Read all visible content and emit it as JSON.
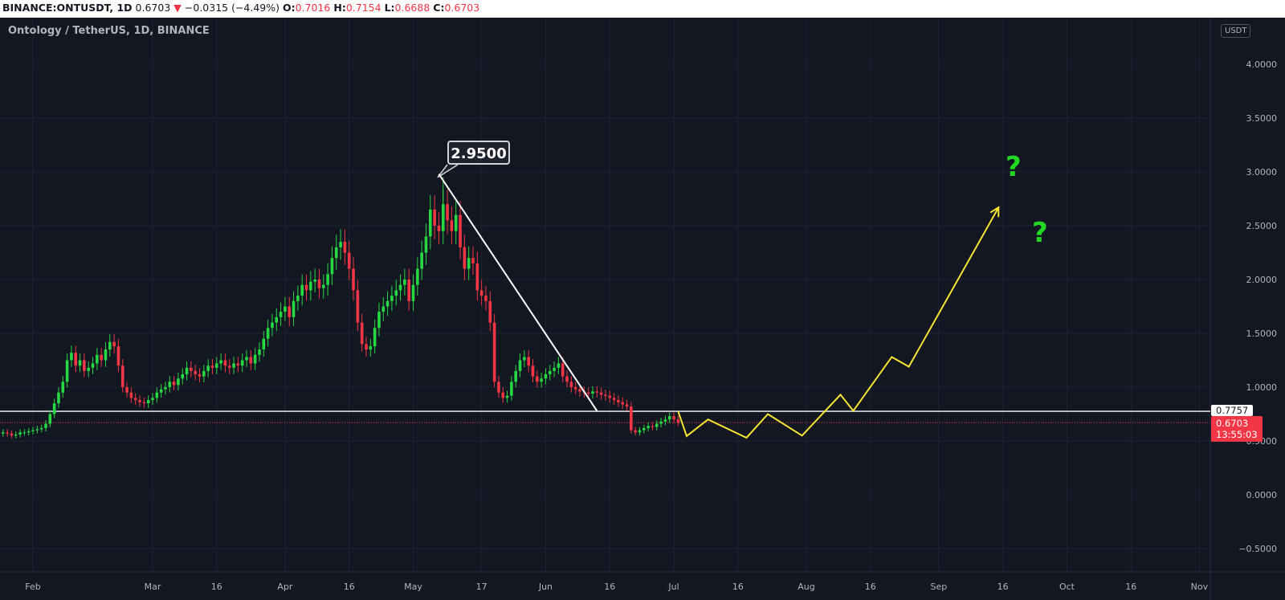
{
  "header": {
    "symbol": "BINANCE:ONTUSDT, 1D",
    "last": "0.6703",
    "change": "−0.0315 (−4.49%)",
    "open_label": "O:",
    "open": "0.7016",
    "high_label": "H:",
    "high": "0.7154",
    "low_label": "L:",
    "low": "0.6688",
    "close_label": "C:",
    "close": "0.6703",
    "down_arrow_icon": "triangle-down"
  },
  "chart": {
    "title": "Ontology / TetherUS, 1D, BINANCE",
    "currency": "USDT",
    "peak_label": "2.9500",
    "horizontal_level_label": "0.7757",
    "current_price_label": "0.6703",
    "countdown": "13:55:03",
    "question_marks": [
      "?",
      "?"
    ],
    "colors": {
      "background": "#131722",
      "up": "#26d841",
      "down": "#f23645",
      "projection": "#f5e431",
      "question": "#22d822",
      "lines": "#ffffff"
    }
  },
  "chart_data": {
    "type": "candlestick",
    "price_axis_ticks": [
      "4.0000",
      "3.5000",
      "3.0000",
      "2.5000",
      "2.0000",
      "1.5000",
      "1.0000",
      "0.5000",
      "0.0000",
      "−0.5000"
    ],
    "price_axis_values": [
      4.0,
      3.5,
      3.0,
      2.5,
      2.0,
      1.5,
      1.0,
      0.5,
      0.0,
      -0.5
    ],
    "time_axis_ticks": [
      {
        "label": "Feb",
        "date": "02-01"
      },
      {
        "label": "Mar",
        "date": "03-01"
      },
      {
        "label": "16",
        "date": "03-16"
      },
      {
        "label": "Apr",
        "date": "04-01"
      },
      {
        "label": "16",
        "date": "04-16"
      },
      {
        "label": "May",
        "date": "05-01"
      },
      {
        "label": "17",
        "date": "05-17"
      },
      {
        "label": "Jun",
        "date": "06-01"
      },
      {
        "label": "16",
        "date": "06-16"
      },
      {
        "label": "Jul",
        "date": "07-01"
      },
      {
        "label": "16",
        "date": "07-16"
      },
      {
        "label": "Aug",
        "date": "08-01"
      },
      {
        "label": "16",
        "date": "08-16"
      },
      {
        "label": "Sep",
        "date": "09-01"
      },
      {
        "label": "16",
        "date": "09-16"
      },
      {
        "label": "Oct",
        "date": "10-01"
      },
      {
        "label": "16",
        "date": "10-16"
      },
      {
        "label": "Nov",
        "date": "11-01"
      }
    ],
    "first_candle_date": "01-25",
    "daily_closes": [
      0.58,
      0.57,
      0.55,
      0.56,
      0.58,
      0.58,
      0.59,
      0.6,
      0.61,
      0.62,
      0.66,
      0.75,
      0.85,
      0.95,
      1.05,
      1.25,
      1.32,
      1.2,
      1.25,
      1.15,
      1.18,
      1.22,
      1.3,
      1.25,
      1.35,
      1.42,
      1.38,
      1.2,
      1.0,
      0.95,
      0.9,
      0.88,
      0.86,
      0.85,
      0.88,
      0.9,
      0.95,
      0.98,
      1.0,
      1.05,
      1.02,
      1.08,
      1.12,
      1.18,
      1.15,
      1.12,
      1.1,
      1.15,
      1.2,
      1.18,
      1.22,
      1.25,
      1.2,
      1.18,
      1.22,
      1.2,
      1.25,
      1.28,
      1.22,
      1.3,
      1.35,
      1.45,
      1.55,
      1.6,
      1.65,
      1.7,
      1.75,
      1.65,
      1.8,
      1.85,
      1.95,
      1.9,
      1.98,
      2.0,
      1.92,
      1.95,
      2.05,
      2.2,
      2.3,
      2.35,
      2.25,
      2.1,
      1.9,
      1.6,
      1.4,
      1.35,
      1.38,
      1.55,
      1.7,
      1.75,
      1.8,
      1.85,
      1.9,
      1.95,
      2.0,
      1.8,
      1.95,
      2.1,
      2.25,
      2.4,
      2.65,
      2.5,
      2.45,
      2.7,
      2.55,
      2.45,
      2.6,
      2.3,
      2.1,
      2.2,
      2.15,
      1.9,
      1.85,
      1.8,
      1.6,
      1.05,
      0.95,
      0.9,
      0.92,
      1.05,
      1.15,
      1.25,
      1.28,
      1.2,
      1.1,
      1.05,
      1.08,
      1.12,
      1.15,
      1.18,
      1.22,
      1.1,
      1.05,
      1.0,
      0.98,
      0.96,
      0.95,
      0.94,
      0.96,
      0.95,
      0.93,
      0.92,
      0.9,
      0.88,
      0.86,
      0.84,
      0.82,
      0.6,
      0.58,
      0.6,
      0.62,
      0.64,
      0.63,
      0.66,
      0.68,
      0.7,
      0.73,
      0.7,
      0.67
    ],
    "peak": {
      "date": "05-08",
      "price": 2.95
    },
    "horizontal_level": 0.7757,
    "current_price": 0.6703,
    "trendline": [
      {
        "date": "05-07",
        "price": 2.98
      },
      {
        "date": "06-13",
        "price": 0.78
      }
    ],
    "projection_path": [
      {
        "date": "07-02",
        "price": 0.776
      },
      {
        "date": "07-04",
        "price": 0.545
      },
      {
        "date": "07-09",
        "price": 0.7
      },
      {
        "date": "07-18",
        "price": 0.53
      },
      {
        "date": "07-23",
        "price": 0.75
      },
      {
        "date": "07-31",
        "price": 0.55
      },
      {
        "date": "08-09",
        "price": 0.93
      },
      {
        "date": "08-12",
        "price": 0.78
      },
      {
        "date": "08-21",
        "price": 1.28
      },
      {
        "date": "08-25",
        "price": 1.19
      },
      {
        "date": "09-15",
        "price": 2.67
      }
    ],
    "grid": true
  }
}
